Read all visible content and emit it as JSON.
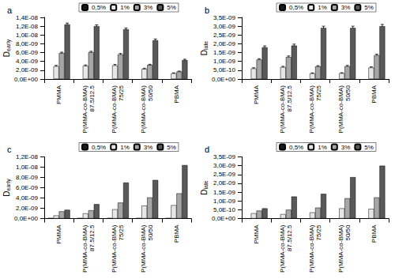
{
  "chart_data": [
    {
      "type": "bar",
      "panel": "a",
      "y_label": {
        "text": "D",
        "subscript": "early"
      },
      "categories": [
        "PMMA",
        "P(MMA-co-BMA)\n87.5/12.5",
        "P(MMA-co-BMA)\n75/25",
        "P(MMA-co-BMA)\n50/50",
        "PBMA"
      ],
      "series": [
        {
          "name": "0,5%",
          "color": "#1a1a1a",
          "values": [
            null,
            null,
            null,
            null,
            null
          ]
        },
        {
          "name": "1%",
          "color": "#e6e6e6",
          "values": [
            2.9e-09,
            3e-09,
            3.1e-09,
            2.3e-09,
            1.3e-09
          ],
          "errors": [
            2e-10,
            2e-10,
            2e-10,
            1.5e-10,
            1e-10
          ]
        },
        {
          "name": "3%",
          "color": "#a6a6a6",
          "values": [
            5.9e-09,
            6.1e-09,
            5.6e-09,
            3.2e-09,
            1.7e-09
          ],
          "errors": [
            2e-10,
            2e-10,
            2e-10,
            1.5e-10,
            1e-10
          ]
        },
        {
          "name": "5%",
          "color": "#595959",
          "values": [
            1.24e-08,
            1.2e-08,
            1.13e-08,
            8.8e-09,
            4.3e-09
          ],
          "errors": [
            3e-10,
            3e-10,
            3e-10,
            3e-10,
            2e-10
          ]
        }
      ],
      "ylim": [
        0,
        1.4e-08
      ],
      "yticks": [
        {
          "value": 0,
          "label": "0,0E+00"
        },
        {
          "value": 2e-09,
          "label": "2,0E-09"
        },
        {
          "value": 4e-09,
          "label": "4,0E-09"
        },
        {
          "value": 6e-09,
          "label": "6,0E-09"
        },
        {
          "value": 8e-09,
          "label": "8,0E-09"
        },
        {
          "value": 1e-08,
          "label": "1,0E-08"
        },
        {
          "value": 1.2e-08,
          "label": "1,2E-08"
        },
        {
          "value": 1.4e-08,
          "label": "1,4E-08"
        }
      ],
      "grid": false,
      "legend": "top"
    },
    {
      "type": "bar",
      "panel": "b",
      "y_label": {
        "text": "D",
        "subscript": "late"
      },
      "categories": [
        "PMMA",
        "P(MMA-co-BMA)\n87.5/12.5",
        "P(MMA-co-BMA)\n75/25",
        "P(MMA-co-BMA)\n50/50",
        "PBMA"
      ],
      "series": [
        {
          "name": "0,5%",
          "color": "#1a1a1a",
          "values": [
            null,
            null,
            null,
            null,
            null
          ]
        },
        {
          "name": "1%",
          "color": "#e6e6e6",
          "values": [
            6e-10,
            6.8e-10,
            3.2e-10,
            3.3e-10,
            6.5e-10
          ],
          "errors": [
            4e-11,
            4e-11,
            3e-11,
            3e-11,
            4e-11
          ]
        },
        {
          "name": "3%",
          "color": "#a6a6a6",
          "values": [
            1.1e-09,
            1.25e-09,
            7.2e-10,
            7.3e-10,
            1.35e-09
          ],
          "errors": [
            5e-11,
            6e-11,
            4e-11,
            4e-11,
            6e-11
          ]
        },
        {
          "name": "5%",
          "color": "#595959",
          "values": [
            1.8e-09,
            1.9e-09,
            2.9e-09,
            2.9e-09,
            3e-09
          ],
          "errors": [
            8e-11,
            8e-11,
            1e-10,
            1e-10,
            1e-10
          ]
        }
      ],
      "ylim": [
        0,
        3.5e-09
      ],
      "yticks": [
        {
          "value": 0,
          "label": "0,0E+00"
        },
        {
          "value": 5e-10,
          "label": "5,0E-10"
        },
        {
          "value": 1e-09,
          "label": "1,0E-09"
        },
        {
          "value": 1.5e-09,
          "label": "1,5E-09"
        },
        {
          "value": 2e-09,
          "label": "2,0E-09"
        },
        {
          "value": 2.5e-09,
          "label": "2,5E-09"
        },
        {
          "value": 3e-09,
          "label": "3,0E-09"
        },
        {
          "value": 3.5e-09,
          "label": "3,5E-09"
        }
      ],
      "grid": false,
      "legend": "top"
    },
    {
      "type": "bar",
      "panel": "c",
      "y_label": {
        "text": "D",
        "subscript": "early"
      },
      "categories": [
        "PMMA",
        "P(MMA-co-BMA)\n87.5/12.5",
        "P(MMA-co-BMA)\n75/25",
        "P(MMA-co-BMA)\n50/50",
        "PBMA"
      ],
      "series": [
        {
          "name": "0,5%",
          "color": "#1a1a1a",
          "values": [
            1e-10,
            1e-10,
            1e-10,
            1e-10,
            1e-10
          ]
        },
        {
          "name": "1%",
          "color": "#e6e6e6",
          "values": [
            6e-10,
            1e-09,
            1.8e-09,
            2.5e-09,
            2.6e-09
          ]
        },
        {
          "name": "3%",
          "color": "#a6a6a6",
          "values": [
            1.4e-09,
            1.6e-09,
            3.1e-09,
            4.1e-09,
            4.9e-09
          ]
        },
        {
          "name": "5%",
          "color": "#595959",
          "values": [
            1.7e-09,
            2.8e-09,
            7e-09,
            7.5e-09,
            1.04e-08
          ]
        }
      ],
      "ylim": [
        0,
        1.2e-08
      ],
      "yticks": [
        {
          "value": 0,
          "label": "0,0E+00"
        },
        {
          "value": 2e-09,
          "label": "2,0E-09"
        },
        {
          "value": 4e-09,
          "label": "4,0E-09"
        },
        {
          "value": 6e-09,
          "label": "6,0E-09"
        },
        {
          "value": 8e-09,
          "label": "8,0E-09"
        },
        {
          "value": 1e-08,
          "label": "1,0E-08"
        },
        {
          "value": 1.2e-08,
          "label": "1,2E-08"
        }
      ],
      "grid": false,
      "legend": "top"
    },
    {
      "type": "bar",
      "panel": "d",
      "y_label": {
        "text": "D",
        "subscript": "late"
      },
      "categories": [
        "PMMA",
        "P(MMA-co-BMA)\n87.5/12.5",
        "P(MMA-co-BMA)\n75/25",
        "P(MMA-co-BMA)\n50/50",
        "PBMA"
      ],
      "series": [
        {
          "name": "0,5%",
          "color": "#1a1a1a",
          "values": [
            null,
            null,
            null,
            null,
            null
          ]
        },
        {
          "name": "1%",
          "color": "#e6e6e6",
          "values": [
            3e-10,
            2.5e-10,
            3.5e-10,
            5.8e-10,
            5.5e-10
          ]
        },
        {
          "name": "3%",
          "color": "#a6a6a6",
          "values": [
            4.5e-10,
            5e-10,
            6.2e-10,
            1.15e-09,
            1.2e-09
          ]
        },
        {
          "name": "5%",
          "color": "#595959",
          "values": [
            5.8e-10,
            1.25e-09,
            1.4e-09,
            2.35e-09,
            3e-09
          ]
        }
      ],
      "ylim": [
        0,
        3.5e-09
      ],
      "yticks": [
        {
          "value": 0,
          "label": "0,0E+00"
        },
        {
          "value": 5e-10,
          "label": "5,0E-10"
        },
        {
          "value": 1e-09,
          "label": "1,0E-09"
        },
        {
          "value": 1.5e-09,
          "label": "1,5E-09"
        },
        {
          "value": 2e-09,
          "label": "2,0E-09"
        },
        {
          "value": 2.5e-09,
          "label": "2,5E-09"
        },
        {
          "value": 3e-09,
          "label": "3,0E-09"
        },
        {
          "value": 3.5e-09,
          "label": "3,5E-09"
        }
      ],
      "grid": false,
      "legend": "top"
    }
  ]
}
